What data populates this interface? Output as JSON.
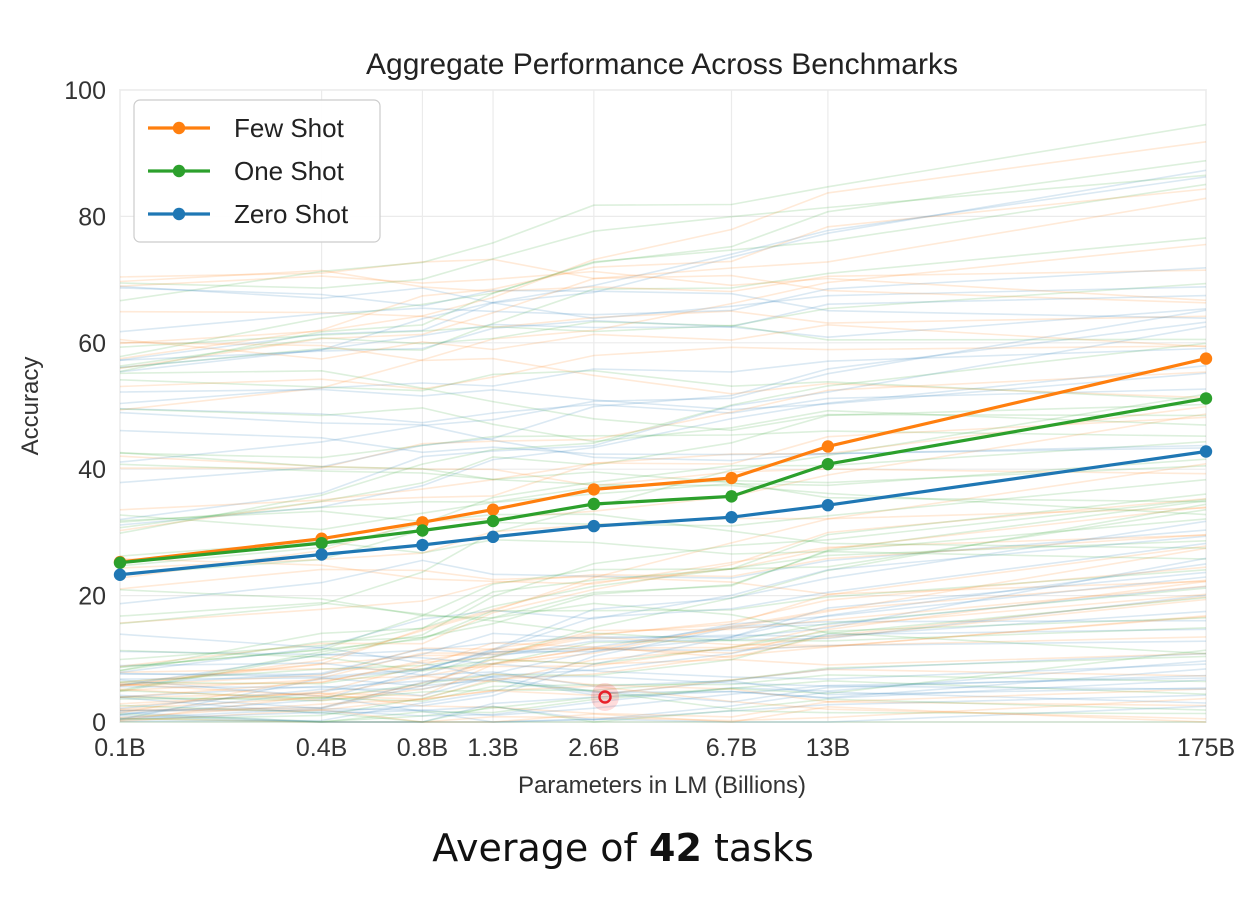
{
  "chart_data": {
    "type": "line",
    "title": "Aggregate Performance Across Benchmarks",
    "xlabel": "Parameters in LM (Billions)",
    "ylabel": "Accuracy",
    "ylim": [
      0,
      100
    ],
    "yticks": [
      0,
      20,
      40,
      60,
      80,
      100
    ],
    "x_log": true,
    "x": [
      0.1,
      0.4,
      0.8,
      1.3,
      2.6,
      6.7,
      13,
      175
    ],
    "x_tick_labels": [
      "0.1B",
      "0.4B",
      "0.8B",
      "1.3B",
      "2.6B",
      "6.7B",
      "13B",
      "175B"
    ],
    "grid": true,
    "legend_position": "top-left",
    "series": [
      {
        "name": "Few Shot",
        "color": "#ff7f0e",
        "values": [
          25.3,
          29.0,
          31.6,
          33.6,
          36.8,
          38.6,
          43.6,
          57.5
        ]
      },
      {
        "name": "One Shot",
        "color": "#2ca02c",
        "values": [
          25.2,
          28.3,
          30.3,
          31.8,
          34.5,
          35.7,
          40.8,
          51.2
        ]
      },
      {
        "name": "Zero Shot",
        "color": "#1f77b4",
        "values": [
          23.3,
          26.5,
          28.0,
          29.3,
          31.0,
          32.4,
          34.3,
          42.8
        ]
      }
    ],
    "background_note": "faint per-task lines"
  },
  "caption": {
    "prefix": "Average of ",
    "count": "42",
    "suffix": " tasks"
  },
  "annotation": {
    "marker_color": "#e8202a"
  }
}
